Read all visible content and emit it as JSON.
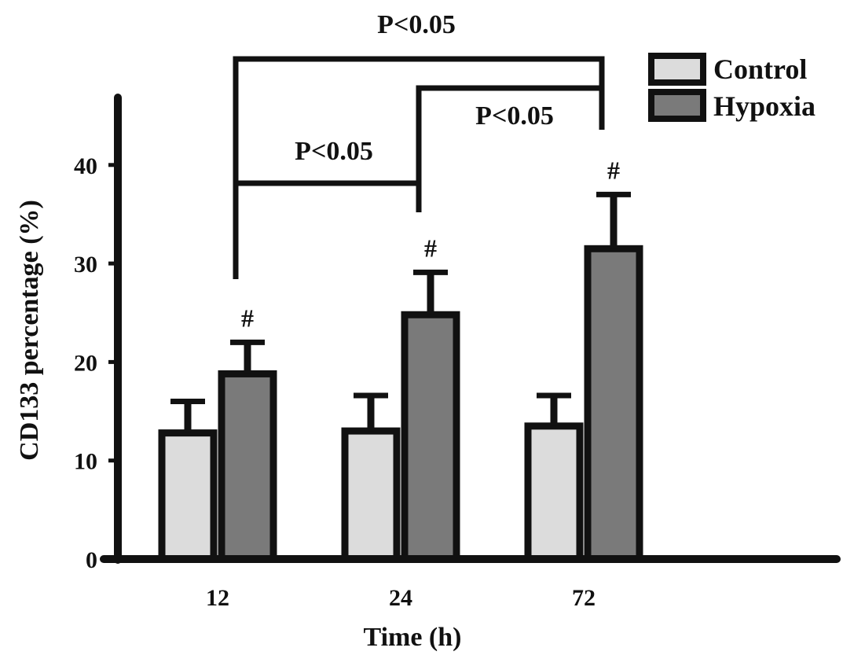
{
  "chart_data": {
    "type": "bar",
    "categories": [
      "12",
      "24",
      "72"
    ],
    "xlabel": "Time (h)",
    "ylabel": "CD133 percentage (%)",
    "ylim": [
      0,
      47
    ],
    "yticks": [
      0,
      10,
      20,
      30,
      40
    ],
    "grid": false,
    "legend_position": "top-right",
    "series": [
      {
        "name": "Control",
        "color": "#dcdcdc",
        "values": [
          12.8,
          13.0,
          13.5
        ],
        "errors": [
          3.2,
          3.6,
          3.1
        ]
      },
      {
        "name": "Hypoxia",
        "color": "#7a7a7a",
        "values": [
          18.8,
          24.8,
          31.5
        ],
        "errors": [
          3.2,
          4.3,
          5.5
        ]
      }
    ],
    "markers": [
      {
        "category": "12",
        "series": "Hypoxia",
        "text": "#"
      },
      {
        "category": "24",
        "series": "Hypoxia",
        "text": "#"
      },
      {
        "category": "72",
        "series": "Hypoxia",
        "text": "#"
      }
    ],
    "significance": [
      {
        "from": "12",
        "to": "72",
        "text": "P<0.05"
      },
      {
        "from": "24",
        "to": "72",
        "text": "P<0.05"
      },
      {
        "from": "12",
        "to": "24",
        "text": "P<0.05"
      }
    ]
  }
}
